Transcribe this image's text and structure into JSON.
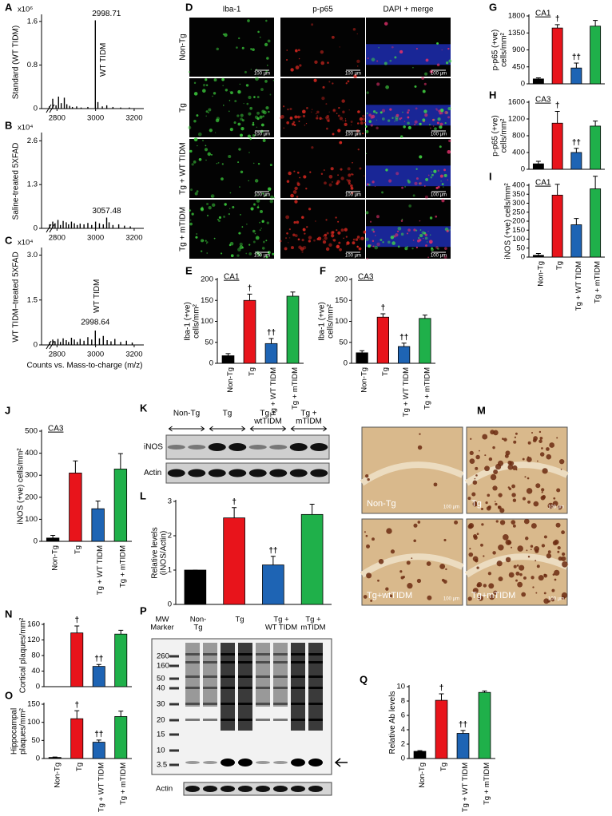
{
  "chart_data": [
    {
      "panel": "A",
      "type": "stem",
      "ylabel": "Standard (WT TIDM)",
      "y_multiplier": "x10⁶",
      "color": "#000000",
      "x": [
        2760,
        2778,
        2795,
        2808,
        2822,
        2838,
        2851,
        2866,
        2880,
        2902,
        2925,
        2960,
        2998.71,
        3012,
        3035,
        3058,
        3090,
        3130,
        3175
      ],
      "values": [
        0.04,
        0.18,
        0.06,
        0.22,
        0.1,
        0.2,
        0.08,
        0.05,
        0.03,
        0.04,
        0.02,
        0.03,
        1.62,
        0.12,
        0.04,
        0.06,
        0.03,
        0.02,
        0.02
      ],
      "xlim": [
        2720,
        3250
      ],
      "xticks": [
        2800,
        3000,
        3200
      ],
      "ylim": [
        0,
        1.7
      ],
      "yticks": [
        0,
        0.8,
        1.6
      ],
      "peak_label": "2998.71",
      "annotation": "WT TIDM"
    },
    {
      "panel": "B",
      "type": "stem",
      "ylabel": "Saline-treated 5XFAD",
      "y_multiplier": "x10⁴",
      "color": "#000000",
      "x": [
        2762,
        2778,
        2790,
        2805,
        2818,
        2832,
        2848,
        2860,
        2875,
        2890,
        2905,
        2920,
        2940,
        2960,
        2980,
        3000,
        3020,
        3040,
        3057.48,
        3070,
        3090,
        3120,
        3150,
        3180
      ],
      "values": [
        0.12,
        0.2,
        0.15,
        0.25,
        0.1,
        0.22,
        0.18,
        0.12,
        0.2,
        0.15,
        0.1,
        0.14,
        0.12,
        0.16,
        0.1,
        0.2,
        0.15,
        0.12,
        0.32,
        0.18,
        0.1,
        0.12,
        0.08,
        0.06
      ],
      "xlim": [
        2720,
        3250
      ],
      "xticks": [
        2800,
        3000,
        3200
      ],
      "ylim": [
        0,
        2.8
      ],
      "yticks": [
        0,
        1.3,
        2.6
      ],
      "peak_label": "3057.48"
    },
    {
      "panel": "C",
      "type": "stem",
      "ylabel": "WT TIDM–treated 5XFAD",
      "y_multiplier": "x10⁴",
      "color": "#000000",
      "x": [
        2762,
        2778,
        2790,
        2805,
        2818,
        2832,
        2848,
        2860,
        2875,
        2890,
        2905,
        2920,
        2940,
        2960,
        2980,
        2998.64,
        3020,
        3040,
        3060,
        3080,
        3100,
        3130,
        3160,
        3190
      ],
      "values": [
        0.1,
        0.18,
        0.12,
        0.2,
        0.1,
        0.22,
        0.16,
        0.1,
        0.24,
        0.18,
        0.1,
        0.2,
        0.14,
        0.26,
        0.18,
        0.48,
        0.22,
        0.3,
        0.16,
        0.12,
        0.2,
        0.1,
        0.14,
        0.08
      ],
      "xlim": [
        2720,
        3250
      ],
      "xticks": [
        2800,
        3000,
        3200
      ],
      "ylim": [
        0,
        3.2
      ],
      "yticks": [
        0,
        1.5,
        {
          "value": 3,
          "label": "3.0"
        }
      ],
      "peak_label": "2998.64",
      "annotation": "WT TIDM",
      "xlabel": "Counts vs. Mass-to-charge (m/z)"
    },
    {
      "panel": "E",
      "type": "bar",
      "region": "CA1",
      "ylabel": [
        "Iba-1 (+ve)",
        "cells/mm²"
      ],
      "categories": [
        "Non-Tg",
        "Tg",
        "Tg + WT TIDM",
        "Tg + mTIDM"
      ],
      "values": [
        18,
        150,
        47,
        160
      ],
      "errors": [
        5,
        15,
        12,
        10
      ],
      "colors": [
        "#000000",
        "#e8141b",
        "#1e64b4",
        "#1fb04a"
      ],
      "significance": [
        null,
        "†",
        "††",
        null
      ],
      "ylim": [
        0,
        200
      ],
      "yticks": [
        0,
        50,
        100,
        150,
        200
      ]
    },
    {
      "panel": "F",
      "type": "bar",
      "region": "CA3",
      "ylabel": [
        "Iba-1 (+ve)",
        "cells/mm²"
      ],
      "categories": [
        "Non-Tg",
        "Tg",
        "Tg + WT TIDM",
        "Tg + mTIDM"
      ],
      "values": [
        25,
        110,
        40,
        107
      ],
      "errors": [
        5,
        8,
        8,
        8
      ],
      "colors": [
        "#000000",
        "#e8141b",
        "#1e64b4",
        "#1fb04a"
      ],
      "significance": [
        null,
        "†",
        "††",
        null
      ],
      "ylim": [
        0,
        200
      ],
      "yticks": [
        0,
        50,
        100,
        150,
        200
      ]
    },
    {
      "panel": "G",
      "type": "bar",
      "region": "CA1",
      "ylabel": [
        "p-p65 (+ve)",
        "cells/mm²"
      ],
      "categories": [
        null,
        null,
        null,
        null
      ],
      "values": [
        130,
        1480,
        420,
        1530
      ],
      "errors": [
        30,
        90,
        130,
        150
      ],
      "colors": [
        "#000000",
        "#e8141b",
        "#1e64b4",
        "#1fb04a"
      ],
      "significance": [
        null,
        "†",
        "††",
        null
      ],
      "ylim": [
        0,
        1800
      ],
      "yticks": [
        0,
        450,
        900,
        1350,
        1800
      ]
    },
    {
      "panel": "H",
      "type": "bar",
      "region": "CA3",
      "ylabel": [
        "p-p65 (+ve)",
        "cells/mm²"
      ],
      "categories": [
        null,
        null,
        null,
        null
      ],
      "values": [
        130,
        1100,
        400,
        1030
      ],
      "errors": [
        60,
        280,
        100,
        120
      ],
      "colors": [
        "#000000",
        "#e8141b",
        "#1e64b4",
        "#1fb04a"
      ],
      "significance": [
        null,
        "†",
        "††",
        null
      ],
      "ylim": [
        0,
        1600
      ],
      "yticks": [
        0,
        400,
        800,
        1200,
        1600
      ]
    },
    {
      "panel": "I",
      "type": "bar",
      "region": "CA1",
      "ylabel": [
        "iNOS (+ve) cells/mm²"
      ],
      "categories": [
        "Non-Tg",
        "Tg",
        "Tg + WT TIDM",
        "Tg + mTIDM"
      ],
      "values": [
        10,
        345,
        180,
        380
      ],
      "errors": [
        10,
        60,
        35,
        70
      ],
      "colors": [
        "#000000",
        "#e8141b",
        "#1e64b4",
        "#1fb04a"
      ],
      "ylim": [
        0,
        400
      ],
      "yticks": [
        0,
        50,
        100,
        150,
        200,
        250,
        300,
        350,
        400
      ]
    },
    {
      "panel": "J",
      "type": "bar",
      "region": "CA3",
      "ylabel": [
        "iNOS (+ve) cells/mm²"
      ],
      "categories": [
        "Non-Tg",
        "Tg",
        "Tg + WT TIDM",
        "Tg + mTIDM"
      ],
      "values": [
        15,
        310,
        148,
        328
      ],
      "errors": [
        12,
        55,
        35,
        70
      ],
      "colors": [
        "#000000",
        "#e8141b",
        "#1e64b4",
        "#1fb04a"
      ],
      "ylim": [
        0,
        500
      ],
      "yticks": [
        0,
        100,
        200,
        300,
        400,
        500
      ]
    },
    {
      "panel": "L",
      "type": "bar",
      "ylabel": [
        "Relative levels",
        "(iNOS/Actin)"
      ],
      "categories": [
        null,
        null,
        null,
        null
      ],
      "values": [
        1,
        2.52,
        1.15,
        2.62
      ],
      "errors": [
        0,
        0.3,
        0.25,
        0.3
      ],
      "colors": [
        "#000000",
        "#e8141b",
        "#1e64b4",
        "#1fb04a"
      ],
      "significance": [
        null,
        "†",
        "††",
        null
      ],
      "ylim": [
        0,
        3
      ],
      "yticks": [
        0,
        1,
        2,
        3
      ]
    },
    {
      "panel": "N",
      "type": "bar",
      "ylabel": [
        "Cortical plaques/mm²"
      ],
      "categories": [
        null,
        null,
        null,
        null
      ],
      "values": [
        0,
        138,
        52,
        135
      ],
      "errors": [
        0,
        18,
        5,
        10
      ],
      "colors": [
        "#000000",
        "#e8141b",
        "#1e64b4",
        "#1fb04a"
      ],
      "significance": [
        null,
        "†",
        "††",
        null
      ],
      "ylim": [
        0,
        160
      ],
      "yticks": [
        0,
        40,
        80,
        120,
        160
      ]
    },
    {
      "panel": "O",
      "type": "bar",
      "ylabel": [
        "Hippocampal",
        "plaques/mm²"
      ],
      "categories": [
        "Non-Tg",
        "Tg",
        "Tg + WT TIDM",
        "Tg + mTIDM"
      ],
      "values": [
        3,
        110,
        45,
        116
      ],
      "errors": [
        1,
        22,
        6,
        15
      ],
      "colors": [
        "#000000",
        "#e8141b",
        "#1e64b4",
        "#1fb04a"
      ],
      "significance": [
        null,
        "†",
        "††",
        null
      ],
      "ylim": [
        0,
        150
      ],
      "yticks": [
        0,
        50,
        100,
        150
      ]
    },
    {
      "panel": "Q",
      "type": "bar",
      "ylabel": [
        "Relative Ab levels"
      ],
      "categories": [
        "Non-Tg",
        "Tg",
        "Tg + WT TIDM",
        "Tg + mTIDM"
      ],
      "values": [
        1,
        8.1,
        3.5,
        9.2
      ],
      "errors": [
        0.1,
        0.9,
        0.4,
        0.2
      ],
      "colors": [
        "#000000",
        "#e8141b",
        "#1e64b4",
        "#1fb04a"
      ],
      "significance": [
        null,
        "†",
        "††",
        null
      ],
      "ylim": [
        0,
        10
      ],
      "yticks": [
        0,
        2,
        4,
        6,
        8,
        10
      ]
    }
  ],
  "panel_d": {
    "panel": "D",
    "columns": [
      "Iba-1",
      "p-p65",
      "DAPI + merge"
    ],
    "rows": [
      "Non-Tg",
      "Tg",
      "Tg + WT TIDM",
      "Tg + mTIDM"
    ],
    "scale_bar": "100 µm"
  },
  "panel_k": {
    "panel": "K",
    "groups": [
      [
        "Non-Tg"
      ],
      [
        "Tg"
      ],
      [
        "Tg +",
        "wtTIDM"
      ],
      [
        "Tg +",
        "mTIDM"
      ]
    ],
    "bands": [
      "iNOS",
      "Actin"
    ]
  },
  "panel_m": {
    "panel": "M",
    "images": [
      "Non-Tg",
      "Tg",
      "Tg+wtTIDM",
      "Tg+mTIDM"
    ],
    "scale_bar": "100 µm"
  },
  "panel_p": {
    "panel": "P",
    "lane_headers": [
      [
        "MW",
        "Marker"
      ],
      [
        "Non-",
        "Tg"
      ],
      [
        "Tg"
      ],
      [
        "Tg +",
        "WT TIDM"
      ],
      [
        "Tg +",
        "mTIDM"
      ]
    ],
    "markers": [
      260,
      160,
      50,
      40,
      30,
      20,
      15,
      10,
      3.5
    ],
    "loading": "Actin"
  }
}
